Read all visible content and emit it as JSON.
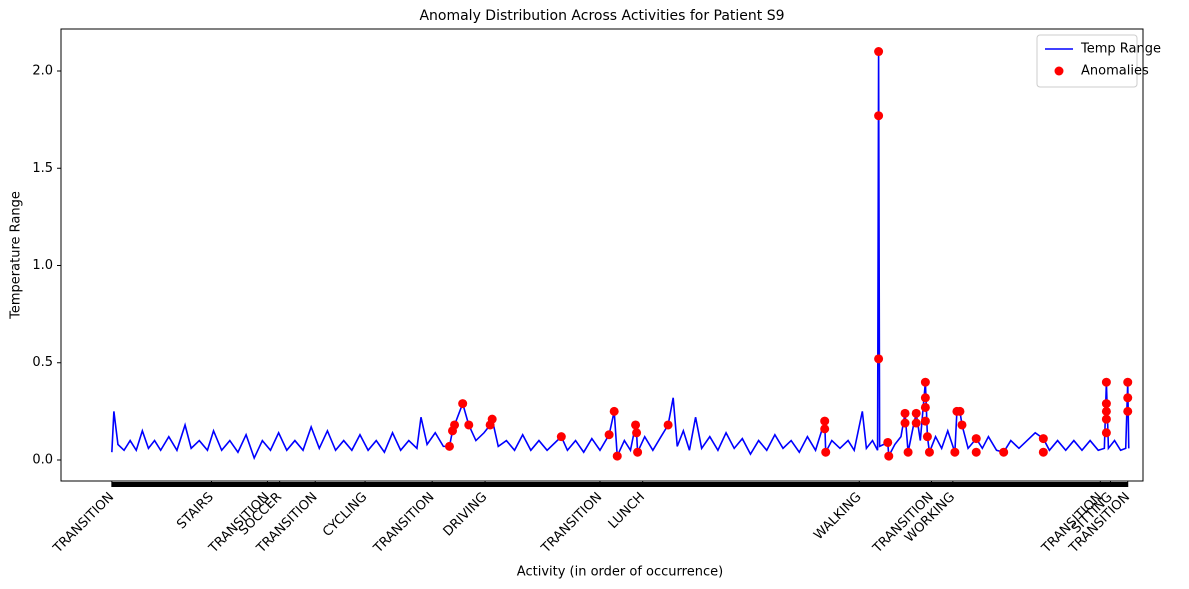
{
  "chart_data": {
    "type": "line",
    "title": "Anomaly Distribution Across Activities for Patient S9",
    "x_label": "Activity (in order of occurrence)",
    "y_label": "Temperature Range",
    "xlim": [
      -50,
      1014
    ],
    "ylim": [
      -0.108,
      2.216
    ],
    "yticks": [
      {
        "value": 0,
        "label": "0.0"
      },
      0.5,
      {
        "value": 1,
        "label": "1.0"
      },
      1.5,
      {
        "value": 2,
        "label": "2.0"
      }
    ],
    "xticks": [
      {
        "value": 0,
        "label": "TRANSITION"
      },
      {
        "value": 98,
        "label": "STAIRS"
      },
      {
        "value": 153,
        "label": "TRANSITION"
      },
      {
        "value": 165,
        "label": "SOCCER"
      },
      {
        "value": 200,
        "label": "TRANSITION"
      },
      {
        "value": 249,
        "label": "CYCLING"
      },
      {
        "value": 315,
        "label": "TRANSITION"
      },
      {
        "value": 367,
        "label": "DRIVING"
      },
      {
        "value": 480,
        "label": "TRANSITION"
      },
      {
        "value": 522,
        "label": "LUNCH"
      },
      {
        "value": 735,
        "label": "WALKING"
      },
      {
        "value": 806,
        "label": "TRANSITION"
      },
      {
        "value": 827,
        "label": "WORKING"
      },
      {
        "value": 972,
        "label": "TRANSITION"
      },
      {
        "value": 982,
        "label": "SITTING"
      },
      {
        "value": 999,
        "label": "TRANSITION"
      }
    ],
    "legend": "upper right",
    "series": [
      {
        "name": "Temp Range",
        "type": "line",
        "color": "#0000ff",
        "x": [
          0,
          2,
          6,
          12,
          18,
          24,
          30,
          36,
          42,
          48,
          56,
          64,
          72,
          78,
          86,
          94,
          100,
          108,
          116,
          124,
          132,
          140,
          148,
          156,
          164,
          172,
          180,
          188,
          196,
          204,
          212,
          220,
          228,
          236,
          244,
          252,
          260,
          268,
          276,
          284,
          292,
          300,
          304,
          310,
          318,
          326,
          332,
          335,
          337,
          345,
          351,
          358,
          366,
          372,
          374,
          380,
          388,
          396,
          404,
          412,
          420,
          428,
          436,
          442,
          448,
          456,
          464,
          472,
          480,
          489,
          494,
          497,
          504,
          510,
          515,
          516,
          517,
          524,
          532,
          540,
          547,
          552,
          556,
          562,
          568,
          574,
          580,
          588,
          596,
          604,
          612,
          620,
          628,
          636,
          644,
          652,
          660,
          668,
          676,
          684,
          692,
          701,
          702,
          708,
          716,
          724,
          730,
          738,
          742,
          748,
          753,
          754,
          755,
          763,
          764,
          770,
          776,
          780,
          783,
          788,
          791,
          795,
          800,
          802,
          804,
          810,
          816,
          822,
          829,
          831,
          834,
          836,
          842,
          850,
          856,
          862,
          870,
          877,
          884,
          892,
          900,
          908,
          916,
          922,
          930,
          938,
          946,
          954,
          962,
          970,
          976,
          978,
          980,
          986,
          992,
          997,
          999,
          1000
        ],
        "values": [
          0.04,
          0.25,
          0.08,
          0.05,
          0.1,
          0.05,
          0.15,
          0.06,
          0.1,
          0.05,
          0.12,
          0.05,
          0.18,
          0.06,
          0.1,
          0.05,
          0.15,
          0.05,
          0.1,
          0.04,
          0.13,
          0.01,
          0.1,
          0.05,
          0.14,
          0.05,
          0.1,
          0.05,
          0.17,
          0.06,
          0.15,
          0.05,
          0.1,
          0.05,
          0.13,
          0.05,
          0.1,
          0.04,
          0.14,
          0.05,
          0.1,
          0.06,
          0.22,
          0.08,
          0.14,
          0.07,
          0.07,
          0.15,
          0.18,
          0.29,
          0.18,
          0.1,
          0.14,
          0.18,
          0.21,
          0.07,
          0.1,
          0.05,
          0.13,
          0.05,
          0.1,
          0.05,
          0.09,
          0.12,
          0.05,
          0.1,
          0.04,
          0.11,
          0.05,
          0.13,
          0.25,
          0.02,
          0.1,
          0.05,
          0.18,
          0.14,
          0.04,
          0.12,
          0.05,
          0.12,
          0.18,
          0.32,
          0.07,
          0.15,
          0.05,
          0.22,
          0.06,
          0.12,
          0.05,
          0.14,
          0.06,
          0.11,
          0.03,
          0.1,
          0.05,
          0.13,
          0.06,
          0.1,
          0.04,
          0.12,
          0.05,
          0.2,
          0.04,
          0.1,
          0.06,
          0.1,
          0.05,
          0.25,
          0.06,
          0.1,
          0.05,
          2.1,
          0.07,
          0.09,
          0.02,
          0.08,
          0.12,
          0.24,
          0.04,
          0.17,
          0.24,
          0.1,
          0.4,
          0.12,
          0.04,
          0.12,
          0.06,
          0.15,
          0.04,
          0.25,
          0.25,
          0.18,
          0.06,
          0.11,
          0.06,
          0.12,
          0.05,
          0.04,
          0.1,
          0.06,
          0.1,
          0.14,
          0.11,
          0.05,
          0.1,
          0.05,
          0.1,
          0.05,
          0.1,
          0.05,
          0.06,
          0.4,
          0.06,
          0.1,
          0.05,
          0.06,
          0.4,
          0.06
        ]
      },
      {
        "name": "Anomalies",
        "type": "scatter",
        "color": "#ff0000",
        "x": [
          345,
          335,
          332,
          337,
          351,
          374,
          372,
          442,
          489,
          494,
          497,
          515,
          516,
          517,
          547,
          701,
          701,
          702,
          754,
          754,
          754,
          763,
          764,
          780,
          780,
          783,
          791,
          791,
          800,
          800,
          800,
          800,
          802,
          804,
          831,
          834,
          836,
          829,
          850,
          850,
          877,
          916,
          916,
          978,
          978,
          978,
          978,
          978,
          999,
          999,
          999
        ],
        "values": [
          0.29,
          0.15,
          0.07,
          0.18,
          0.18,
          0.21,
          0.18,
          0.12,
          0.13,
          0.25,
          0.02,
          0.18,
          0.14,
          0.04,
          0.18,
          0.2,
          0.16,
          0.04,
          2.1,
          1.77,
          0.52,
          0.09,
          0.02,
          0.24,
          0.19,
          0.04,
          0.24,
          0.19,
          0.4,
          0.32,
          0.27,
          0.2,
          0.12,
          0.04,
          0.25,
          0.25,
          0.18,
          0.04,
          0.11,
          0.04,
          0.04,
          0.11,
          0.04,
          0.4,
          0.29,
          0.25,
          0.21,
          0.14,
          0.4,
          0.32,
          0.25
        ]
      }
    ]
  }
}
